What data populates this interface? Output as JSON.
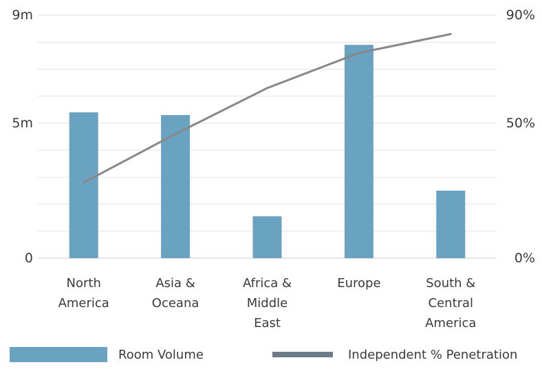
{
  "chart_data": {
    "type": "bar",
    "categories": [
      [
        "North",
        "America"
      ],
      [
        "Asia &",
        "Oceana"
      ],
      [
        "Africa &",
        "Middle",
        "East"
      ],
      [
        "Europe"
      ],
      [
        "South &",
        "Central",
        "America"
      ]
    ],
    "series": [
      {
        "name": "Room Volume",
        "type": "bar",
        "axis": "left",
        "color": "#6aa2c2",
        "values": [
          5.4,
          5.3,
          1.55,
          7.9,
          2.5
        ]
      },
      {
        "name": "Independent % Penetration",
        "type": "line",
        "axis": "right",
        "color": "#888888",
        "values": [
          28,
          46,
          63,
          76,
          83
        ]
      }
    ],
    "y_left": {
      "ylim": [
        0,
        9
      ],
      "tick_values": [
        0,
        5,
        9
      ],
      "tick_labels": [
        "0",
        "5m",
        "9m"
      ]
    },
    "y_right": {
      "ylim": [
        0,
        90
      ],
      "tick_values": [
        0,
        50,
        90
      ],
      "tick_labels": [
        "0%",
        "50%",
        "90%"
      ]
    },
    "gridlines": "horizontal",
    "legend_position": "bottom"
  },
  "legend": {
    "bar_label": "Room Volume",
    "line_label": "Independent % Penetration"
  }
}
